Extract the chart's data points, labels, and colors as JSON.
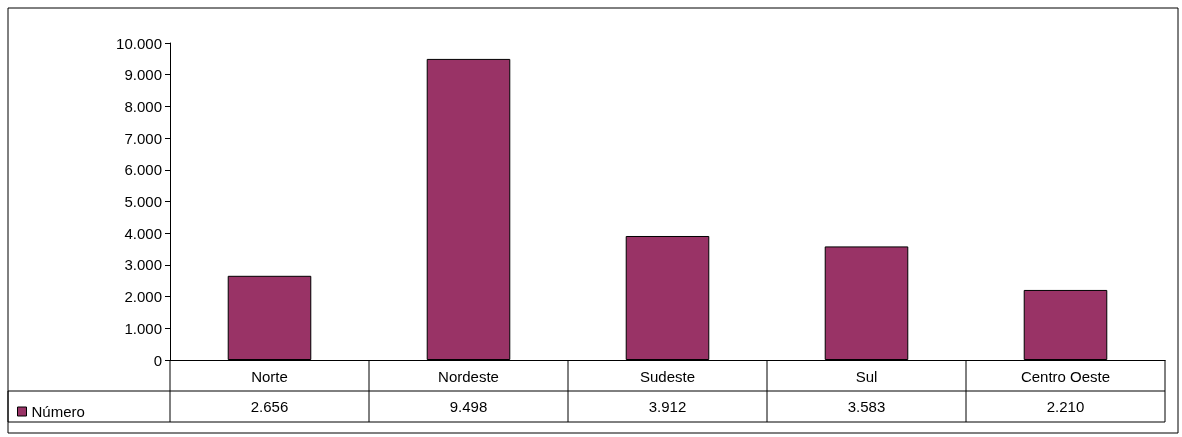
{
  "chart_data": {
    "type": "bar",
    "categories": [
      "Norte",
      "Nordeste",
      "Sudeste",
      "Sul",
      "Centro Oeste"
    ],
    "series": [
      {
        "name": "Número",
        "color": "#993366",
        "values": [
          2656,
          9498,
          3912,
          3583,
          2210
        ],
        "value_labels": [
          "2.656",
          "9.498",
          "3.912",
          "3.583",
          "2.210"
        ]
      }
    ],
    "ylim": [
      0,
      10000
    ],
    "yticks": [
      {
        "value": 0,
        "label": "0"
      },
      {
        "value": 1000,
        "label": "1.000"
      },
      {
        "value": 2000,
        "label": "2.000"
      },
      {
        "value": 3000,
        "label": "3.000"
      },
      {
        "value": 4000,
        "label": "4.000"
      },
      {
        "value": 5000,
        "label": "5.000"
      },
      {
        "value": 6000,
        "label": "6.000"
      },
      {
        "value": 7000,
        "label": "7.000"
      },
      {
        "value": 8000,
        "label": "8.000"
      },
      {
        "value": 9000,
        "label": "9.000"
      },
      {
        "value": 10000,
        "label": "10.000"
      }
    ],
    "grid": false,
    "legend": "bottom left"
  }
}
